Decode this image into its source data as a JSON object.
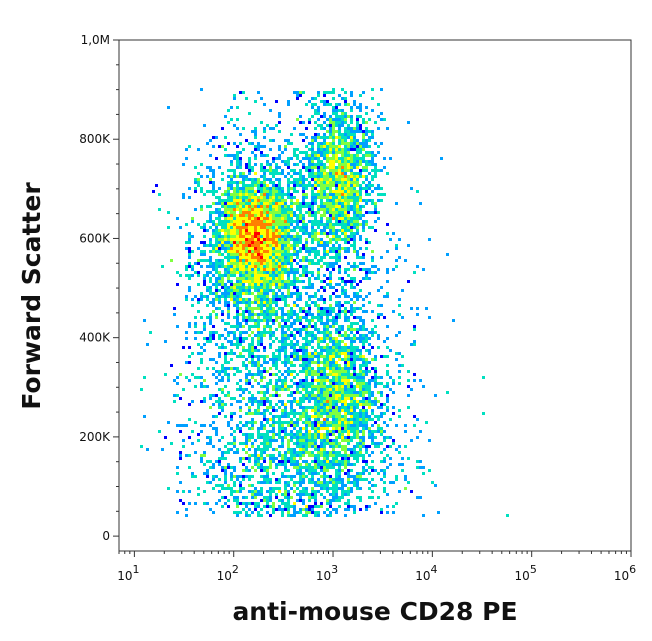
{
  "chart_data": {
    "type": "scatter",
    "subtype": "flow-cytometry-density-dot-plot",
    "xlabel": "anti-mouse CD28 PE",
    "ylabel": "Forward Scatter",
    "x_scale": "log",
    "xlim": [
      7,
      1000000
    ],
    "ylim": [
      -30000,
      1000000
    ],
    "x_ticks": [
      {
        "value": 10,
        "base": "10",
        "exp": "1"
      },
      {
        "value": 100,
        "base": "10",
        "exp": "2"
      },
      {
        "value": 1000,
        "base": "10",
        "exp": "3"
      },
      {
        "value": 10000,
        "base": "10",
        "exp": "4"
      },
      {
        "value": 100000,
        "base": "10",
        "exp": "5"
      },
      {
        "value": 1000000,
        "base": "10",
        "exp": "6"
      }
    ],
    "y_ticks": [
      {
        "value": 0,
        "label": "0"
      },
      {
        "value": 200000,
        "label": "200K"
      },
      {
        "value": 400000,
        "label": "400K"
      },
      {
        "value": 600000,
        "label": "600K"
      },
      {
        "value": 800000,
        "label": "800K"
      },
      {
        "value": 1000000,
        "label": "1,0M"
      }
    ],
    "density_colormap": [
      "#0000ff",
      "#00a0ff",
      "#00e0c0",
      "#80ff40",
      "#ffff00",
      "#ff8000",
      "#ff0000"
    ],
    "populations": [
      {
        "x_log10_center": 2.22,
        "y_center": 605000,
        "x_log10_sd": 0.18,
        "y_sd": 55000,
        "weight": 0.24
      },
      {
        "x_log10_center": 2.2,
        "y_center": 540000,
        "x_log10_sd": 0.32,
        "y_sd": 130000,
        "weight": 0.16
      },
      {
        "x_log10_center": 3.05,
        "y_center": 720000,
        "x_log10_sd": 0.18,
        "y_sd": 80000,
        "weight": 0.16
      },
      {
        "x_log10_center": 3.05,
        "y_center": 300000,
        "x_log10_sd": 0.2,
        "y_sd": 90000,
        "weight": 0.14
      },
      {
        "x_log10_center": 2.6,
        "y_center": 150000,
        "x_log10_sd": 0.5,
        "y_sd": 120000,
        "weight": 0.2
      },
      {
        "x_log10_center": 2.7,
        "y_center": 450000,
        "x_log10_sd": 0.55,
        "y_sd": 230000,
        "weight": 0.1
      }
    ]
  }
}
